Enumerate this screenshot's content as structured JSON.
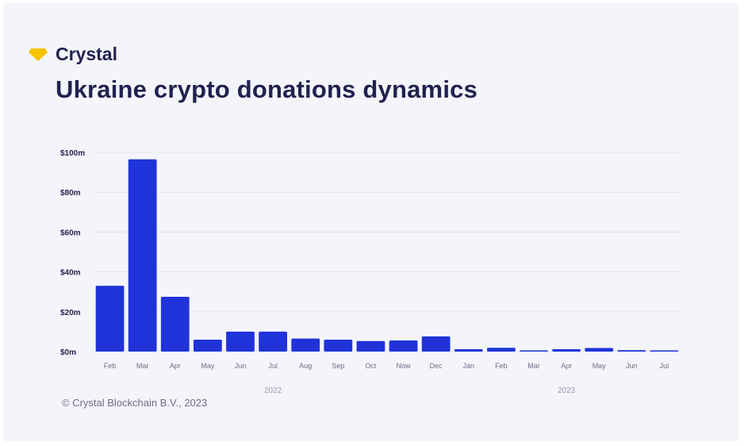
{
  "brand": {
    "name": "Crystal",
    "logo_icon": "diamond-icon",
    "logo_color": "#f5c400"
  },
  "title": "Ukraine crypto donations dynamics",
  "footer": "© Crystal Blockchain B.V., 2023",
  "colors": {
    "bar": "#1f33d9",
    "grid": "#e3e3ee",
    "text": "#23214f",
    "muted": "#6f6e84"
  },
  "chart_data": {
    "type": "bar",
    "title": "Ukraine crypto donations dynamics",
    "xlabel": "",
    "ylabel": "",
    "ylim": [
      0,
      100
    ],
    "yticks": [
      "$0m",
      "$20m",
      "$40m",
      "$60m",
      "$80m",
      "$100m"
    ],
    "ytick_values": [
      0,
      20,
      40,
      60,
      80,
      100
    ],
    "grid": true,
    "categories": [
      "Feb",
      "Mar",
      "Apr",
      "May",
      "Jun",
      "Jul",
      "Aug",
      "Sep",
      "Oct",
      "Now",
      "Dec",
      "Jan",
      "Feb",
      "Mar",
      "Apr",
      "May",
      "Jun",
      "Jul"
    ],
    "years": [
      {
        "label": "2022",
        "from": 0,
        "to": 10
      },
      {
        "label": "2023",
        "from": 11,
        "to": 17
      }
    ],
    "series": [
      {
        "values": [
          33,
          96.5,
          27.5,
          6,
          10,
          10,
          6.5,
          6,
          5.3,
          5.6,
          7.6,
          1.2,
          1.9,
          0.6,
          1.2,
          1.8,
          0.7,
          0.4
        ]
      }
    ]
  }
}
